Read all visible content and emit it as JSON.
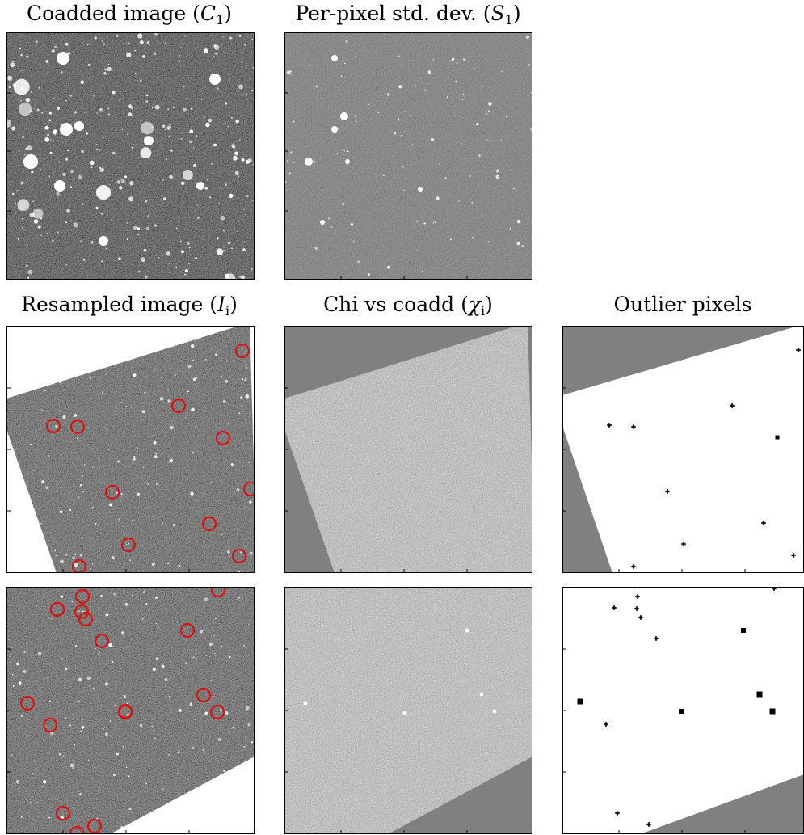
{
  "titles": {
    "coadd": "Coadded image",
    "coadd_sym": "C",
    "coadd_sub": "1",
    "std": "Per-pixel std. dev.",
    "std_sym": "S",
    "std_sub": "1",
    "resampled": "Resampled image",
    "resampled_sym": "I",
    "resampled_sub": "i",
    "chi": "Chi vs coadd",
    "chi_sym": "χ",
    "chi_sub": "i",
    "outlier": "Outlier pixels"
  },
  "colors": {
    "frame": "#000000",
    "sky_dark": "#151515",
    "sky_std": "#3a3a3a",
    "chi_gray": "#8a8a8a",
    "masked": "#808080",
    "circle": "#dd1111",
    "outlier_bg": "#ffffff"
  },
  "panels": [
    {
      "name": "coadd-image-panel",
      "kind": "coadd"
    },
    {
      "name": "stddev-image-panel",
      "kind": "std"
    },
    {
      "name": "resampled-image-panel-1",
      "kind": "resampled"
    },
    {
      "name": "chi-image-panel-1",
      "kind": "chi"
    },
    {
      "name": "outlier-pixels-panel-1",
      "kind": "outlier"
    },
    {
      "name": "resampled-image-panel-2",
      "kind": "resampled"
    },
    {
      "name": "chi-image-panel-2",
      "kind": "chi"
    },
    {
      "name": "outlier-pixels-panel-2",
      "kind": "outlier"
    }
  ]
}
